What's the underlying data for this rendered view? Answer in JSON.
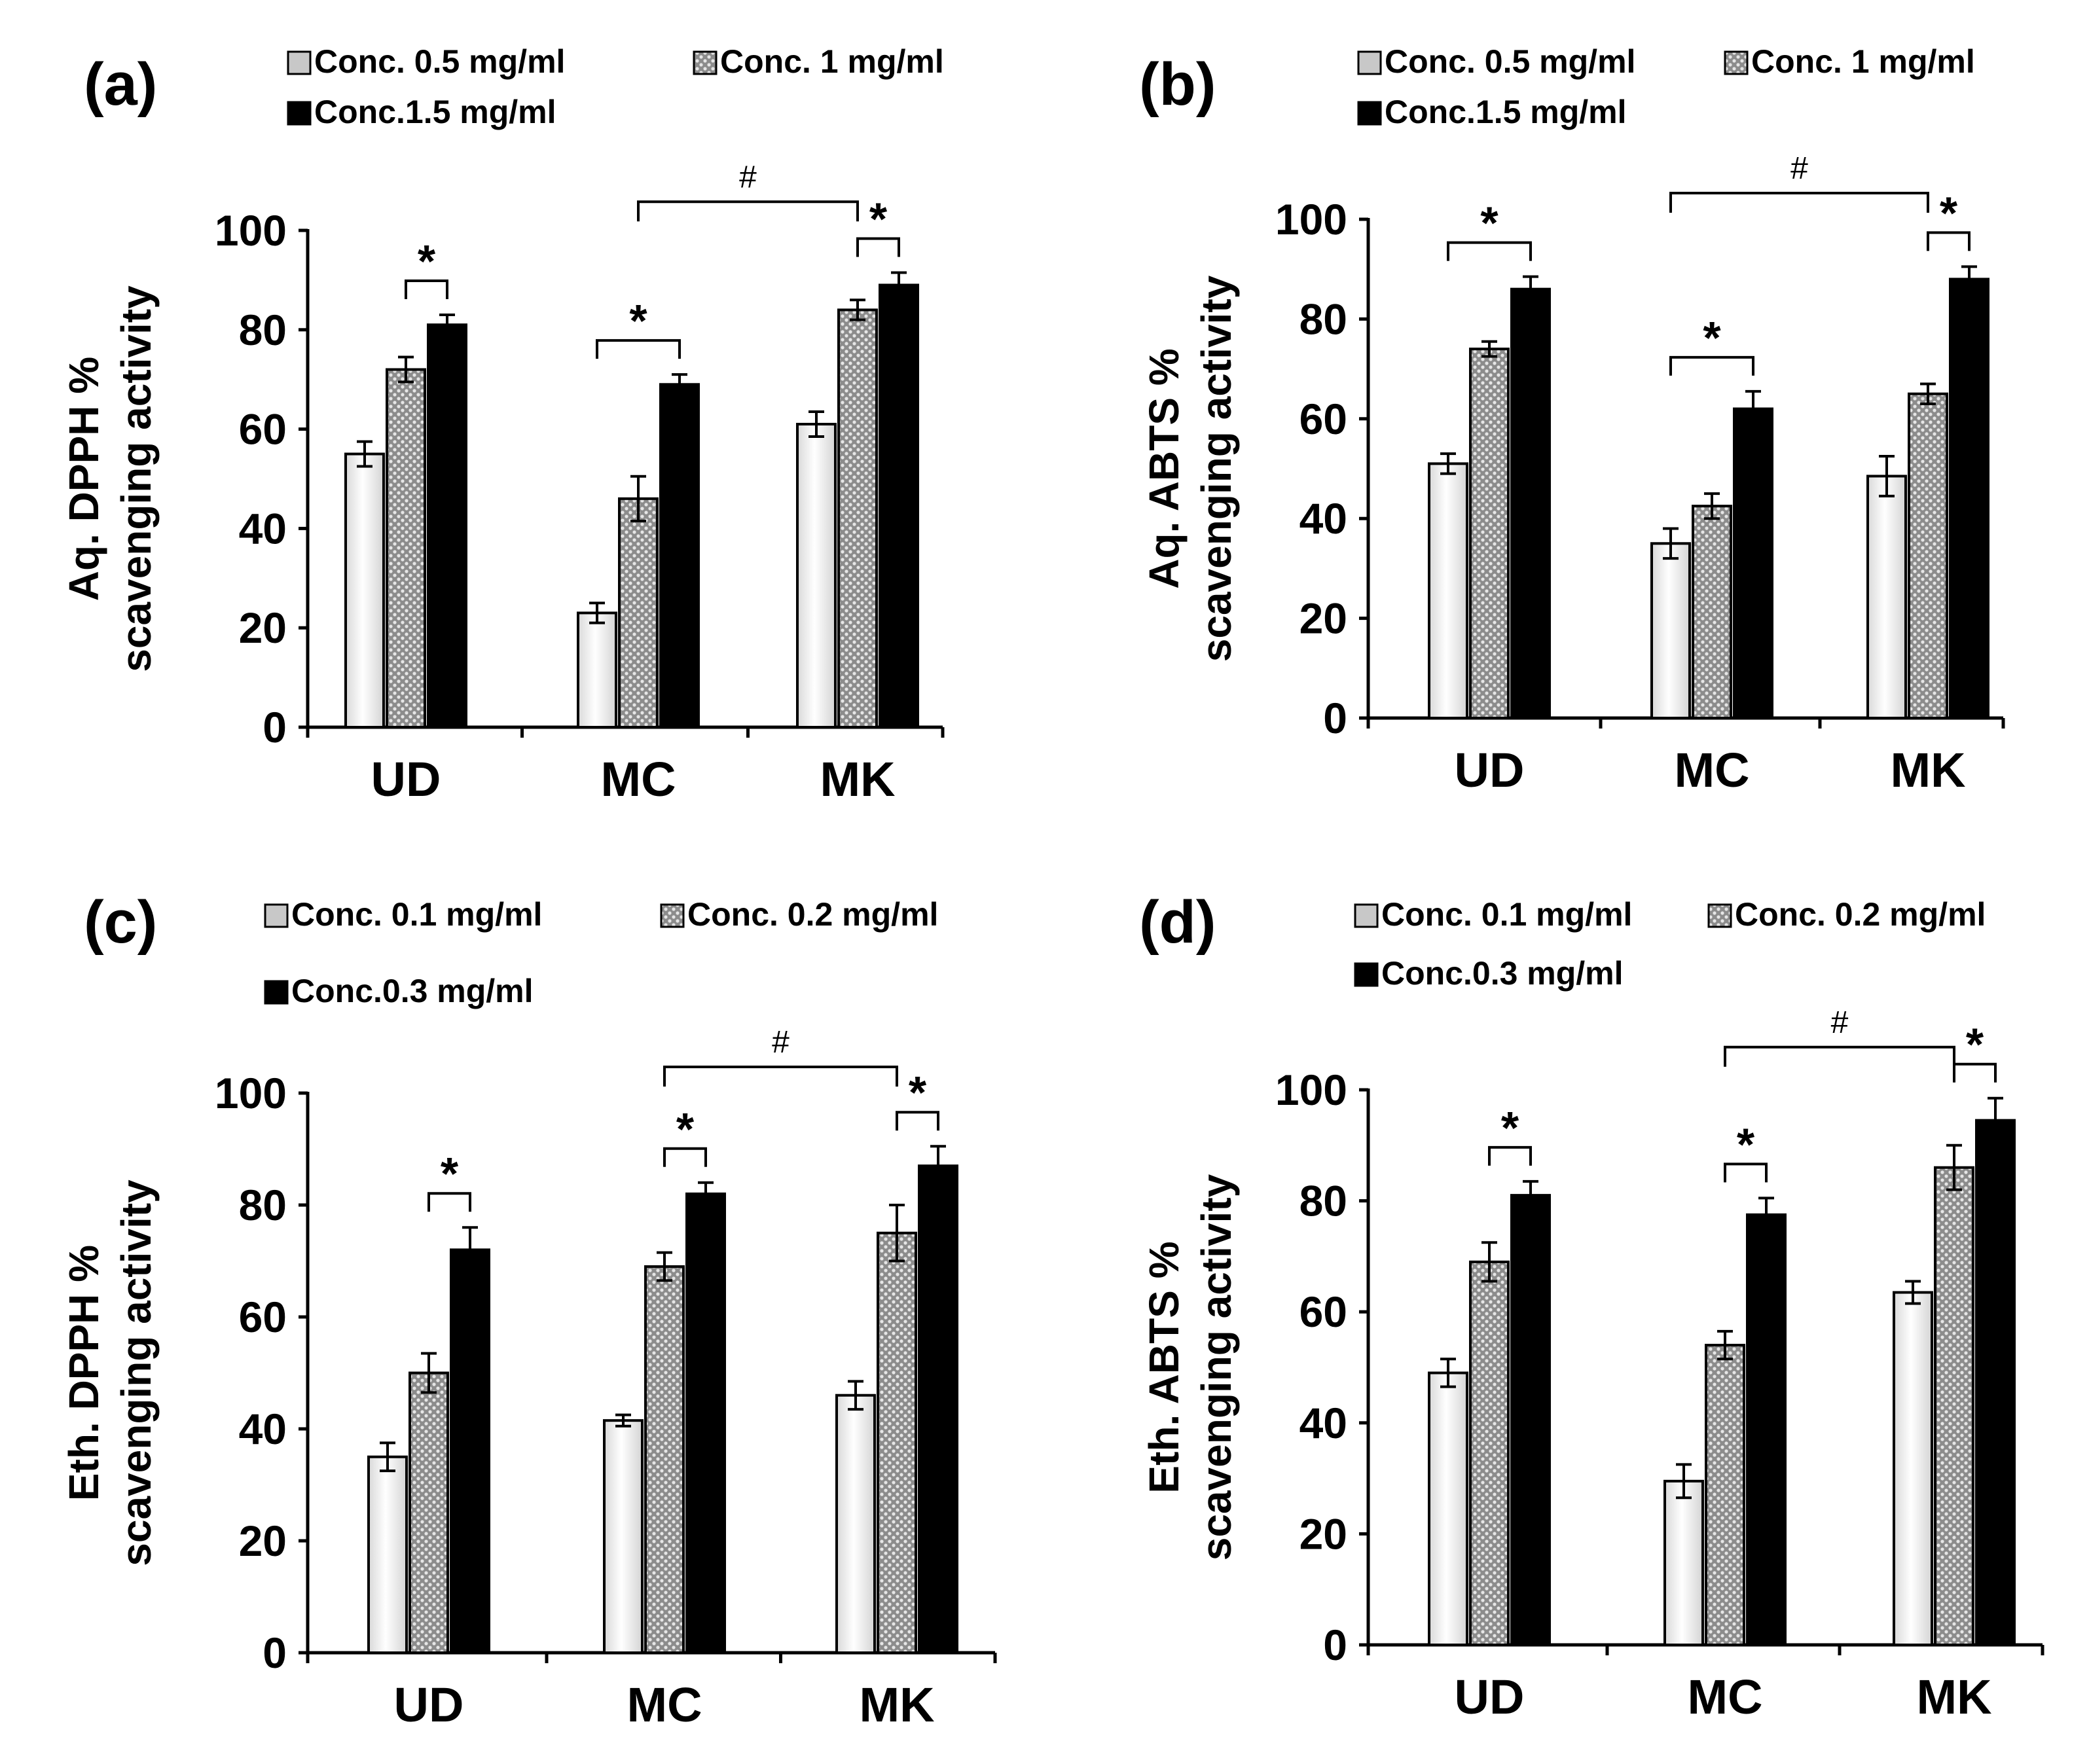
{
  "colors": {
    "axis": "#000000",
    "bar_light": "#ececec",
    "bar_pattern": "#9a9a9a",
    "bar_dark": "#000000"
  },
  "chart_data": [
    {
      "type": "bar",
      "panel": "(a)",
      "title": "",
      "xlabel": "",
      "ylabel": "Aq. DPPH % scavenging activity",
      "ylabel_lines": [
        "Aq. DPPH %",
        "scavenging activity"
      ],
      "ylim": [
        0,
        100
      ],
      "yticks": [
        "0",
        "20",
        "40",
        "60",
        "80",
        "100"
      ],
      "categories": [
        "UD",
        "MC",
        "MK"
      ],
      "legend": [
        "Conc. 0.5 mg/ml",
        "Conc. 1 mg/ml",
        "Conc.1.5 mg/ml"
      ],
      "series": [
        {
          "name": "Conc. 0.5 mg/ml",
          "values": [
            55,
            23,
            61
          ],
          "errors": [
            2.5,
            2,
            2.5
          ]
        },
        {
          "name": "Conc. 1 mg/ml",
          "values": [
            72,
            46,
            84
          ],
          "errors": [
            2.5,
            4.5,
            2
          ]
        },
        {
          "name": "Conc.1.5 mg/ml",
          "values": [
            81,
            69,
            89
          ],
          "errors": [
            2,
            2,
            2.5
          ]
        }
      ],
      "annotations": [
        {
          "symbol": "*",
          "from": [
            0,
            1
          ],
          "to": [
            0,
            2
          ]
        },
        {
          "symbol": "*",
          "from": [
            1,
            0
          ],
          "to": [
            1,
            2
          ]
        },
        {
          "symbol": "*",
          "from": [
            2,
            1
          ],
          "to": [
            2,
            2
          ]
        },
        {
          "symbol": "#",
          "from": [
            1,
            1
          ],
          "to": [
            2,
            1
          ]
        }
      ]
    },
    {
      "type": "bar",
      "panel": "(b)",
      "title": "",
      "xlabel": "",
      "ylabel": "Aq. ABTS % scavenging activity",
      "ylabel_lines": [
        "Aq. ABTS %",
        "scavenging activity"
      ],
      "ylim": [
        0,
        100
      ],
      "yticks": [
        "0",
        "20",
        "40",
        "60",
        "80",
        "100"
      ],
      "categories": [
        "UD",
        "MC",
        "MK"
      ],
      "legend": [
        "Conc. 0.5 mg/ml",
        "Conc. 1 mg/ml",
        "Conc.1.5 mg/ml"
      ],
      "series": [
        {
          "name": "Conc. 0.5 mg/ml",
          "values": [
            51,
            35,
            48.5
          ],
          "errors": [
            2,
            3,
            4
          ]
        },
        {
          "name": "Conc. 1 mg/ml",
          "values": [
            74,
            42.5,
            65
          ],
          "errors": [
            1.5,
            2.5,
            2
          ]
        },
        {
          "name": "Conc.1.5 mg/ml",
          "values": [
            86,
            62,
            88
          ],
          "errors": [
            2.5,
            3.5,
            2.5
          ]
        }
      ],
      "annotations": [
        {
          "symbol": "*",
          "from": [
            0,
            0
          ],
          "to": [
            0,
            2
          ]
        },
        {
          "symbol": "*",
          "from": [
            1,
            0
          ],
          "to": [
            1,
            2
          ]
        },
        {
          "symbol": "*",
          "from": [
            2,
            1
          ],
          "to": [
            2,
            2
          ]
        },
        {
          "symbol": "#",
          "from": [
            1,
            0
          ],
          "to": [
            2,
            1
          ]
        }
      ]
    },
    {
      "type": "bar",
      "panel": "(c)",
      "title": "",
      "xlabel": "",
      "ylabel": "Eth. DPPH % scavenging activity",
      "ylabel_lines": [
        "Eth. DPPH %",
        "scavenging activity"
      ],
      "ylim": [
        0,
        100
      ],
      "yticks": [
        "0",
        "20",
        "40",
        "60",
        "80",
        "100"
      ],
      "categories": [
        "UD",
        "MC",
        "MK"
      ],
      "legend": [
        "Conc. 0.1 mg/ml",
        "Conc. 0.2 mg/ml",
        "Conc.0.3 mg/ml"
      ],
      "series": [
        {
          "name": "Conc. 0.1 mg/ml",
          "values": [
            35,
            41.5,
            46
          ],
          "errors": [
            2.5,
            1,
            2.5
          ]
        },
        {
          "name": "Conc. 0.2 mg/ml",
          "values": [
            50,
            69,
            75
          ],
          "errors": [
            3.5,
            2.5,
            5
          ]
        },
        {
          "name": "Conc.0.3 mg/ml",
          "values": [
            72,
            82,
            87
          ],
          "errors": [
            4,
            2,
            3.5
          ]
        }
      ],
      "annotations": [
        {
          "symbol": "*",
          "from": [
            0,
            1
          ],
          "to": [
            0,
            2
          ]
        },
        {
          "symbol": "*",
          "from": [
            1,
            1
          ],
          "to": [
            1,
            2
          ]
        },
        {
          "symbol": "*",
          "from": [
            2,
            1
          ],
          "to": [
            2,
            2
          ]
        },
        {
          "symbol": "#",
          "from": [
            1,
            1
          ],
          "to": [
            2,
            1
          ]
        }
      ]
    },
    {
      "type": "bar",
      "panel": "(d)",
      "title": "",
      "xlabel": "",
      "ylabel": "Eth. ABTS % scavenging activity",
      "ylabel_lines": [
        "Eth. ABTS %",
        "scavenging activity"
      ],
      "ylim": [
        0,
        100
      ],
      "yticks": [
        "0",
        "20",
        "40",
        "60",
        "80",
        "100"
      ],
      "categories": [
        "UD",
        "MC",
        "MK"
      ],
      "legend": [
        "Conc. 0.1 mg/ml",
        "Conc. 0.2 mg/ml",
        "Conc.0.3 mg/ml"
      ],
      "series": [
        {
          "name": "Conc. 0.1 mg/ml",
          "values": [
            49,
            29.5,
            63.5
          ],
          "errors": [
            2.5,
            3,
            2
          ]
        },
        {
          "name": "Conc. 0.2 mg/ml",
          "values": [
            69,
            54,
            86
          ],
          "errors": [
            3.5,
            2.5,
            4
          ]
        },
        {
          "name": "Conc.0.3 mg/ml",
          "values": [
            81,
            77.5,
            94.5
          ],
          "errors": [
            2.5,
            3,
            4
          ]
        }
      ],
      "annotations": [
        {
          "symbol": "*",
          "from": [
            0,
            1
          ],
          "to": [
            0,
            2
          ]
        },
        {
          "symbol": "*",
          "from": [
            1,
            1
          ],
          "to": [
            1,
            2
          ]
        },
        {
          "symbol": "*",
          "from": [
            2,
            1
          ],
          "to": [
            2,
            2
          ]
        },
        {
          "symbol": "#",
          "from": [
            1,
            1
          ],
          "to": [
            2,
            1
          ]
        }
      ]
    }
  ]
}
